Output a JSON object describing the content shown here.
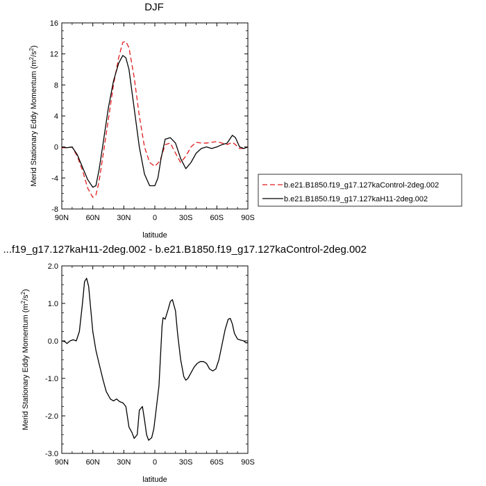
{
  "chart_data": [
    {
      "type": "line",
      "title": "DJF",
      "xlabel": "latitude",
      "ylabel": "Merid Stationary Eddy Momentum (m²/s²)",
      "ylabel_main": "Merid Stationary Eddy Momentum (m",
      "ylabel_mid": "/s",
      "ylabel_close": ")",
      "ylabel_sup": "2",
      "xlim": [
        90,
        -90
      ],
      "ylim": [
        -8,
        16
      ],
      "x_ticks": [
        90,
        60,
        30,
        0,
        -30,
        -60,
        -90
      ],
      "x_tick_labels": [
        "90N",
        "60N",
        "30N",
        "0",
        "30S",
        "60S",
        "90S"
      ],
      "y_ticks": [
        -8,
        -4,
        0,
        4,
        8,
        12,
        16
      ],
      "y_tick_labels": [
        "-8",
        "-4",
        "0",
        "4",
        "8",
        "12",
        "16"
      ],
      "grid": false,
      "legend_position": "right",
      "series": [
        {
          "name": "b.e21.B1850.f19_g17.127kaControl-2deg.002",
          "color": "#e0191c",
          "dash": true,
          "x": [
            90,
            85,
            80,
            75,
            70,
            65,
            60,
            57,
            54,
            50,
            45,
            40,
            35,
            31,
            28,
            25,
            20,
            15,
            10,
            5,
            0,
            -5,
            -10,
            -15,
            -20,
            -25,
            -30,
            -35,
            -40,
            -45,
            -50,
            -55,
            -60,
            -65,
            -70,
            -75,
            -78,
            -82,
            -86,
            -90
          ],
          "y": [
            -0.1,
            -0.1,
            0.0,
            -1.2,
            -3.0,
            -5.3,
            -6.5,
            -6.2,
            -4.5,
            -1.0,
            3.5,
            8.0,
            11.5,
            13.5,
            13.6,
            12.8,
            9.0,
            4.0,
            0.0,
            -2.0,
            -2.5,
            -1.8,
            0.3,
            0.5,
            -0.8,
            -2.0,
            -1.2,
            0.0,
            0.6,
            0.5,
            0.5,
            0.6,
            0.7,
            0.5,
            0.3,
            0.6,
            0.3,
            -0.2,
            -0.2,
            0.0
          ]
        },
        {
          "name": "b.e21.B1850.f19_g17.127kaH11-2deg.002",
          "color": "#000000",
          "dash": false,
          "x": [
            90,
            85,
            80,
            75,
            70,
            65,
            60,
            57,
            54,
            50,
            45,
            40,
            35,
            31,
            28,
            25,
            20,
            15,
            10,
            5,
            0,
            -3,
            -6,
            -10,
            -15,
            -20,
            -25,
            -30,
            -35,
            -40,
            -45,
            -50,
            -55,
            -60,
            -65,
            -70,
            -75,
            -78,
            -82,
            -86,
            -90
          ],
          "y": [
            0.0,
            -0.1,
            0.0,
            -1.0,
            -2.6,
            -4.2,
            -5.2,
            -5.0,
            -3.0,
            0.5,
            5.0,
            8.5,
            10.8,
            11.8,
            11.5,
            10.0,
            5.0,
            0.0,
            -3.5,
            -5.0,
            -5.0,
            -4.0,
            -1.5,
            1.0,
            1.2,
            0.5,
            -1.5,
            -2.8,
            -2.0,
            -0.8,
            -0.2,
            0.0,
            -0.2,
            0.0,
            0.3,
            0.5,
            1.5,
            1.2,
            0.0,
            -0.2,
            0.0
          ]
        }
      ]
    },
    {
      "type": "line",
      "title": "...f19_g17.127kaH11-2deg.002 - b.e21.B1850.f19_g17.127kaControl-2deg.002",
      "xlabel": "latitude",
      "ylabel": "Merid Stationary Eddy Momentum (m²/s²)",
      "ylabel_main": "Merid Stationary Eddy Momentum (m",
      "ylabel_mid": "/s",
      "ylabel_close": ")",
      "ylabel_sup": "2",
      "xlim": [
        90,
        -90
      ],
      "ylim": [
        -3,
        2
      ],
      "x_ticks": [
        90,
        60,
        30,
        0,
        -30,
        -60,
        -90
      ],
      "x_tick_labels": [
        "90N",
        "60N",
        "30N",
        "0",
        "30S",
        "60S",
        "90S"
      ],
      "y_ticks": [
        -3,
        -2,
        -1,
        0,
        1,
        2
      ],
      "y_tick_labels": [
        "-3.0",
        "-2.0",
        "-1.0",
        "0.0",
        "1.0",
        "2.0"
      ],
      "grid": false,
      "series": [
        {
          "color": "#000000",
          "dash": false,
          "x": [
            90,
            87,
            85,
            82,
            79,
            76,
            73,
            70,
            68,
            66,
            64,
            62,
            60,
            57,
            54,
            50,
            47,
            43,
            40,
            37,
            34,
            31,
            28,
            25,
            22,
            20,
            17,
            15,
            12,
            10,
            8,
            6,
            3,
            1,
            -1,
            -4,
            -7,
            -8,
            -10,
            -13,
            -15,
            -17,
            -20,
            -22,
            -25,
            -28,
            -30,
            -32,
            -35,
            -38,
            -41,
            -44,
            -47,
            -50,
            -53,
            -56,
            -59,
            -62,
            -65,
            -68,
            -71,
            -73,
            -75,
            -77,
            -80,
            -83,
            -86,
            -88,
            -90
          ],
          "y": [
            0.0,
            -0.02,
            -0.07,
            0.0,
            0.03,
            0.0,
            0.25,
            1.0,
            1.58,
            1.67,
            1.45,
            0.85,
            0.25,
            -0.25,
            -0.6,
            -1.05,
            -1.35,
            -1.55,
            -1.6,
            -1.55,
            -1.62,
            -1.65,
            -1.75,
            -2.3,
            -2.45,
            -2.6,
            -2.5,
            -1.85,
            -1.75,
            -2.1,
            -2.5,
            -2.65,
            -2.58,
            -2.35,
            -1.9,
            -1.2,
            0.4,
            0.62,
            0.58,
            0.85,
            1.05,
            1.1,
            0.8,
            0.2,
            -0.5,
            -0.95,
            -1.05,
            -1.0,
            -0.85,
            -0.7,
            -0.6,
            -0.55,
            -0.55,
            -0.6,
            -0.75,
            -0.8,
            -0.75,
            -0.5,
            -0.1,
            0.3,
            0.58,
            0.6,
            0.45,
            0.2,
            0.05,
            0.02,
            0.0,
            -0.05,
            -0.05
          ]
        }
      ]
    }
  ]
}
